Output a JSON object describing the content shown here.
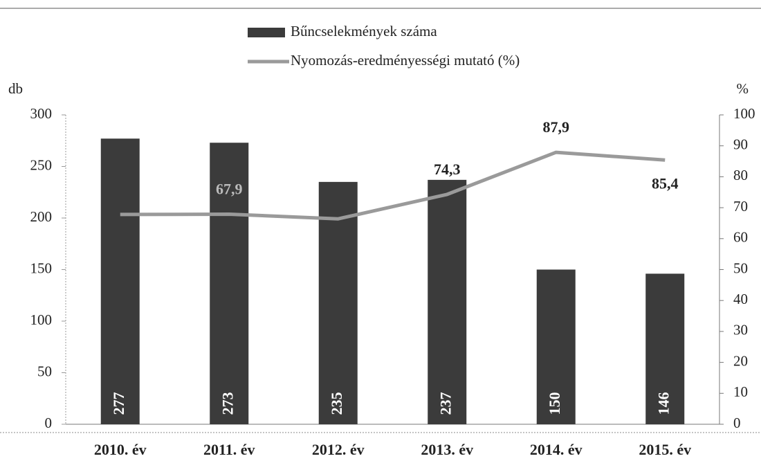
{
  "chart_data": {
    "type": "bar-line",
    "categories": [
      "2010. év",
      "2011. év",
      "2012. év",
      "2013. év",
      "2014. év",
      "2015. év"
    ],
    "y_label": "db",
    "y2_label": "%",
    "ylim": [
      0,
      300
    ],
    "yticks": [
      0,
      50,
      100,
      150,
      200,
      250,
      300
    ],
    "y2lim": [
      0,
      100
    ],
    "y2ticks": [
      0,
      10,
      20,
      30,
      40,
      50,
      60,
      70,
      80,
      90,
      100
    ],
    "series": [
      {
        "name": "Bűncselekmények száma",
        "type": "bar",
        "color": "#3b3b3b",
        "values": [
          277,
          273,
          235,
          237,
          150,
          146
        ]
      },
      {
        "name": "Nyomozás-eredményességi mutató (%)",
        "type": "line",
        "axis": "y2",
        "color": "#9a9a9a",
        "values": [
          67.8,
          67.9,
          66.4,
          74.3,
          87.9,
          85.4
        ],
        "value_labels": [
          null,
          "67,9",
          null,
          "74,3",
          "87,9",
          "85,4"
        ]
      }
    ]
  }
}
